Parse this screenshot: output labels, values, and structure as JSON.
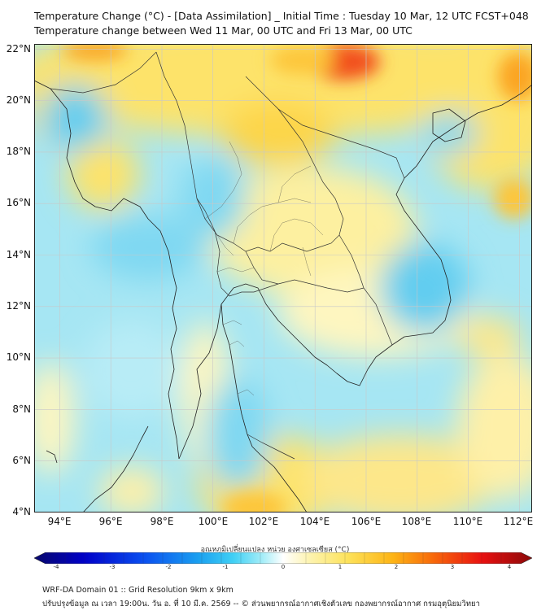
{
  "title_line1": "Temperature Change (°C) - [Data Assimilation] _ Initial Time : Tuesday 10 Mar, 12 UTC FCST+048",
  "title_line2": "Temperature change between Wed 11 Mar, 00 UTC and Fri 13 Mar, 00 UTC",
  "lat_labels": [
    "22°N",
    "20°N",
    "18°N",
    "16°N",
    "14°N",
    "12°N",
    "10°N",
    "8°N",
    "6°N",
    "4°N"
  ],
  "lon_labels": [
    "94°E",
    "96°E",
    "98°E",
    "100°E",
    "102°E",
    "104°E",
    "106°E",
    "108°E",
    "110°E",
    "112°E"
  ],
  "colorbar": {
    "label": "อุณหภูมิเปลี่ยนแปลง หน่วย องศาเซลเซียส (°C)",
    "ticks": [
      "-4",
      "-3",
      "-2",
      "-1",
      "0",
      "1",
      "2",
      "3",
      "4"
    ],
    "range": [
      -4,
      4
    ],
    "colors": [
      "#08086b",
      "#0000c8",
      "#0a4ff0",
      "#1aa0f0",
      "#40d0f5",
      "#a8eef8",
      "#ffffff",
      "#fdf4b4",
      "#fde25a",
      "#fdb415",
      "#f86a0a",
      "#e81010",
      "#8b0a0a"
    ]
  },
  "footer_line1": "WRF-DA Domain 01 :: Grid Resolution 9km x 9km",
  "footer_line2": "ปรับปรุงข้อมูล ณ เวลา 19:00น. วัน อ. ที่ 10 มี.ค. 2569 -- © ส่วนพยากรณ์อากาศเชิงตัวเลข กองพยากรณ์อากาศ กรมอุตุนิยมวิทยา",
  "map": {
    "extent": {
      "lon": [
        93,
        112.5
      ],
      "lat": [
        4,
        22.2
      ]
    },
    "background": "#a6e6f3",
    "warm_colors": [
      "#fef8c0",
      "#fde36a",
      "#fdc63a",
      "#fba520",
      "#f2501a"
    ],
    "cool_colors": [
      "#7fd8f2",
      "#62cdf0",
      "#48c2ec"
    ]
  }
}
